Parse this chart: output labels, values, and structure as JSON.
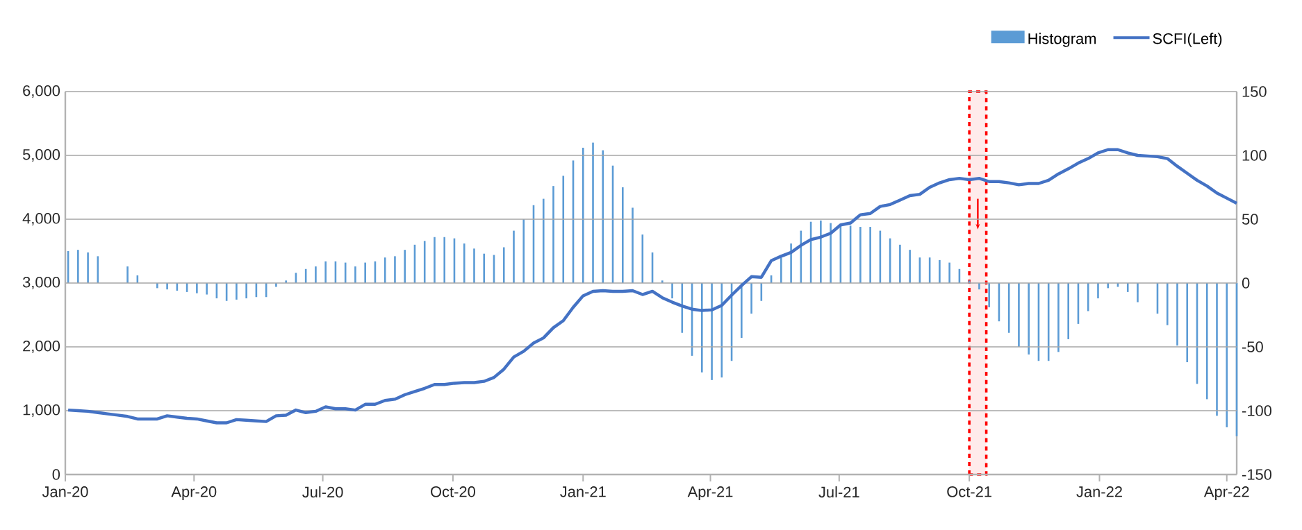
{
  "chart_data": {
    "type": "bar",
    "x": [
      "2020-01-03",
      "2020-01-10",
      "2020-01-17",
      "2020-01-24",
      "2020-01-31",
      "2020-02-07",
      "2020-02-14",
      "2020-02-21",
      "2020-02-28",
      "2020-03-06",
      "2020-03-13",
      "2020-03-20",
      "2020-03-27",
      "2020-04-03",
      "2020-04-10",
      "2020-04-17",
      "2020-04-24",
      "2020-05-01",
      "2020-05-08",
      "2020-05-15",
      "2020-05-22",
      "2020-05-29",
      "2020-06-05",
      "2020-06-12",
      "2020-06-19",
      "2020-06-26",
      "2020-07-03",
      "2020-07-10",
      "2020-07-17",
      "2020-07-24",
      "2020-07-31",
      "2020-08-07",
      "2020-08-14",
      "2020-08-21",
      "2020-08-28",
      "2020-09-04",
      "2020-09-11",
      "2020-09-18",
      "2020-09-25",
      "2020-10-02",
      "2020-10-09",
      "2020-10-16",
      "2020-10-23",
      "2020-10-30",
      "2020-11-06",
      "2020-11-13",
      "2020-11-20",
      "2020-11-27",
      "2020-12-04",
      "2020-12-11",
      "2020-12-18",
      "2020-12-25",
      "2021-01-01",
      "2021-01-08",
      "2021-01-15",
      "2021-01-22",
      "2021-01-29",
      "2021-02-05",
      "2021-02-12",
      "2021-02-19",
      "2021-02-26",
      "2021-03-05",
      "2021-03-12",
      "2021-03-19",
      "2021-03-26",
      "2021-04-02",
      "2021-04-09",
      "2021-04-16",
      "2021-04-23",
      "2021-04-30",
      "2021-05-07",
      "2021-05-14",
      "2021-05-21",
      "2021-05-28",
      "2021-06-04",
      "2021-06-11",
      "2021-06-18",
      "2021-06-25",
      "2021-07-02",
      "2021-07-09",
      "2021-07-16",
      "2021-07-23",
      "2021-07-30",
      "2021-08-06",
      "2021-08-13",
      "2021-08-20",
      "2021-08-27",
      "2021-09-03",
      "2021-09-10",
      "2021-09-17",
      "2021-09-24",
      "2021-10-01",
      "2021-10-08",
      "2021-10-15",
      "2021-10-22",
      "2021-10-29",
      "2021-11-05",
      "2021-11-12",
      "2021-11-19",
      "2021-11-26",
      "2021-12-03",
      "2021-12-10",
      "2021-12-17",
      "2021-12-24",
      "2021-12-31",
      "2022-01-07",
      "2022-01-14",
      "2022-01-21",
      "2022-01-28",
      "2022-02-04",
      "2022-02-11",
      "2022-02-18",
      "2022-02-25",
      "2022-03-04",
      "2022-03-11",
      "2022-03-18",
      "2022-03-25",
      "2022-04-01",
      "2022-04-08"
    ],
    "series": [
      {
        "name": "Histogram",
        "axis": "y2",
        "color": "#5b9bd5",
        "values": [
          25,
          26,
          24,
          21,
          null,
          null,
          13,
          6,
          null,
          -4,
          -5,
          -6,
          -7,
          -8,
          -9,
          -12,
          -14,
          -13,
          -12,
          -11,
          -11,
          -3,
          2,
          8,
          11,
          13,
          17,
          17,
          16,
          13,
          16,
          17,
          20,
          21,
          26,
          30,
          33,
          36,
          36,
          35,
          31,
          27,
          23,
          22,
          28,
          41,
          50,
          61,
          66,
          76,
          84,
          96,
          106,
          110,
          104,
          92,
          75,
          59,
          38,
          24,
          2,
          -12,
          -39,
          -57,
          -70,
          -76,
          -74,
          -61,
          -43,
          -24,
          -14,
          6,
          20,
          31,
          41,
          48,
          49,
          47,
          46,
          45,
          44,
          44,
          41,
          35,
          30,
          26,
          20,
          20,
          18,
          16,
          11,
          2,
          -5,
          -19,
          -30,
          -39,
          -50,
          -56,
          -61,
          -61,
          -54,
          -44,
          -32,
          -22,
          -12,
          -4,
          -3,
          -7,
          -15,
          null,
          -24,
          -33,
          -49,
          -62,
          -79,
          -91,
          -104,
          -113,
          -120
        ]
      },
      {
        "name": "SCFI(Left)",
        "type": "line",
        "color": "#4472c4",
        "values": [
          1010,
          1000,
          990,
          970,
          950,
          930,
          910,
          870,
          870,
          870,
          920,
          900,
          880,
          870,
          840,
          810,
          810,
          860,
          850,
          840,
          830,
          920,
          930,
          1010,
          970,
          990,
          1060,
          1030,
          1030,
          1010,
          1100,
          1100,
          1160,
          1180,
          1250,
          1300,
          1350,
          1410,
          1410,
          1430,
          1440,
          1440,
          1460,
          1520,
          1650,
          1840,
          1930,
          2060,
          2140,
          2300,
          2410,
          2620,
          2800,
          2870,
          2880,
          2870,
          2870,
          2880,
          2820,
          2870,
          2770,
          2700,
          2640,
          2590,
          2570,
          2580,
          2650,
          2810,
          2960,
          3100,
          3090,
          3350,
          3420,
          3480,
          3590,
          3680,
          3720,
          3780,
          3910,
          3940,
          4070,
          4090,
          4200,
          4230,
          4300,
          4370,
          4390,
          4500,
          4570,
          4620,
          4640,
          4620,
          4640,
          4590,
          4590,
          4570,
          4540,
          4560,
          4560,
          4610,
          4710,
          4790,
          4880,
          4950,
          5040,
          5090,
          5090,
          5040,
          5000,
          4990,
          4980,
          4950,
          4830,
          4720,
          4610,
          4520,
          4410,
          4330,
          4250
        ]
      }
    ],
    "xlim": [
      "2020-01-01",
      "2022-04-08"
    ],
    "xticks": [
      {
        "value": "2020-01-01",
        "label": "Jan-20"
      },
      {
        "value": "2020-04-01",
        "label": "Apr-20"
      },
      {
        "value": "2020-07-01",
        "label": "Jul-20"
      },
      {
        "value": "2020-10-01",
        "label": "Oct-20"
      },
      {
        "value": "2021-01-01",
        "label": "Jan-21"
      },
      {
        "value": "2021-04-01",
        "label": "Apr-21"
      },
      {
        "value": "2021-07-01",
        "label": "Jul-21"
      },
      {
        "value": "2021-10-01",
        "label": "Oct-21"
      },
      {
        "value": "2022-01-01",
        "label": "Jan-22"
      },
      {
        "value": "2022-04-01",
        "label": "Apr-22"
      }
    ],
    "ylim": [
      0,
      6000
    ],
    "yticks": [
      0,
      {
        "value": 1000,
        "label": "1,000"
      },
      {
        "value": 2000,
        "label": "2,000"
      },
      {
        "value": 3000,
        "label": "3,000"
      },
      {
        "value": 4000,
        "label": "4,000"
      },
      {
        "value": 5000,
        "label": "5,000"
      },
      {
        "value": 6000,
        "label": "6,000"
      }
    ],
    "y2lim": [
      -150,
      150
    ],
    "y2ticks": [
      -150,
      -100,
      -50,
      0,
      50,
      100,
      150
    ],
    "grid": "y",
    "legend": "top right",
    "bands": [
      {
        "axis": "x",
        "from": "2021-10-01",
        "to": "2021-10-13",
        "color": "#ff0000"
      }
    ]
  }
}
